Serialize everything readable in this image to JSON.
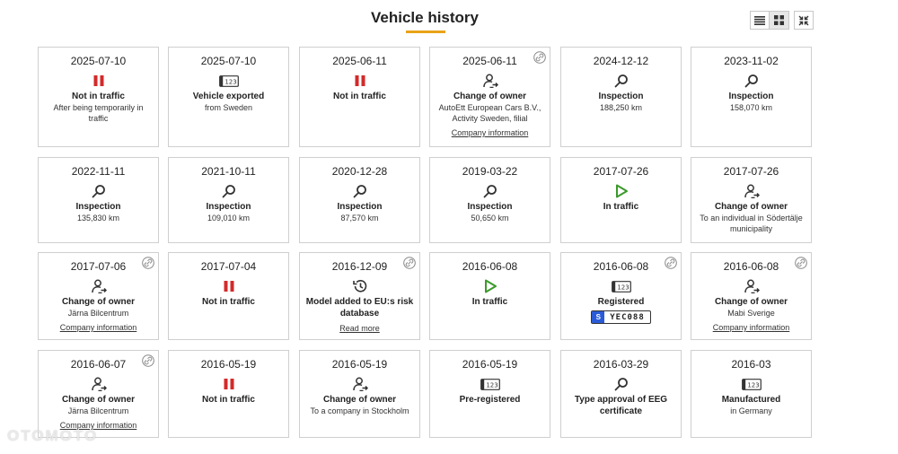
{
  "page": {
    "title": "Vehicle history",
    "watermark": "OTOMOTO"
  },
  "colors": {
    "accent": "#e8a317",
    "pause_red": "#d32a2a",
    "play_green": "#3a9a2a",
    "eu_blue": "#2a5bd7"
  },
  "toolbar": {
    "list_view_icon": "list-icon",
    "grid_view_icon": "grid-icon",
    "collapse_icon": "collapse-icon"
  },
  "events": [
    {
      "date": "2025-07-10",
      "icon": "pause",
      "title": "Not in traffic",
      "desc": "After being temporarily in traffic",
      "link": "",
      "linkicon": false
    },
    {
      "date": "2025-07-10",
      "icon": "plate",
      "title": "Vehicle exported",
      "desc": "from Sweden",
      "link": "",
      "linkicon": false
    },
    {
      "date": "2025-06-11",
      "icon": "pause",
      "title": "Not in traffic",
      "desc": "",
      "link": "",
      "linkicon": false
    },
    {
      "date": "2025-06-11",
      "icon": "owner",
      "title": "Change of owner",
      "desc": "AutoEtt European Cars B.V., Activity Sweden, filial",
      "link": "Company information",
      "linkicon": true
    },
    {
      "date": "2024-12-12",
      "icon": "search",
      "title": "Inspection",
      "desc": "188,250 km",
      "link": "",
      "linkicon": false
    },
    {
      "date": "2023-11-02",
      "icon": "search",
      "title": "Inspection",
      "desc": "158,070 km",
      "link": "",
      "linkicon": false
    },
    {
      "date": "2022-11-11",
      "icon": "search",
      "title": "Inspection",
      "desc": "135,830 km",
      "link": "",
      "linkicon": false
    },
    {
      "date": "2021-10-11",
      "icon": "search",
      "title": "Inspection",
      "desc": "109,010 km",
      "link": "",
      "linkicon": false
    },
    {
      "date": "2020-12-28",
      "icon": "search",
      "title": "Inspection",
      "desc": "87,570 km",
      "link": "",
      "linkicon": false
    },
    {
      "date": "2019-03-22",
      "icon": "search",
      "title": "Inspection",
      "desc": "50,650 km",
      "link": "",
      "linkicon": false
    },
    {
      "date": "2017-07-26",
      "icon": "play",
      "title": "In traffic",
      "desc": "",
      "link": "",
      "linkicon": false
    },
    {
      "date": "2017-07-26",
      "icon": "owner",
      "title": "Change of owner",
      "desc": "To an individual in Södertälje municipality",
      "link": "",
      "linkicon": false
    },
    {
      "date": "2017-07-06",
      "icon": "owner",
      "title": "Change of owner",
      "desc": "Järna Bilcentrum",
      "link": "Company information",
      "linkicon": true
    },
    {
      "date": "2017-07-04",
      "icon": "pause",
      "title": "Not in traffic",
      "desc": "",
      "link": "",
      "linkicon": false
    },
    {
      "date": "2016-12-09",
      "icon": "history",
      "title": "Model added to EU:s risk database",
      "desc": "",
      "link": "Read more",
      "linkicon": true
    },
    {
      "date": "2016-06-08",
      "icon": "play",
      "title": "In traffic",
      "desc": "",
      "link": "",
      "linkicon": false
    },
    {
      "date": "2016-06-08",
      "icon": "plate",
      "title": "Registered",
      "desc": "",
      "link": "",
      "linkicon": true,
      "plate_country": "S",
      "plate_number": "YEC088"
    },
    {
      "date": "2016-06-08",
      "icon": "owner",
      "title": "Change of owner",
      "desc": "Mabi Sverige",
      "link": "Company information",
      "linkicon": true
    },
    {
      "date": "2016-06-07",
      "icon": "owner",
      "title": "Change of owner",
      "desc": "Järna Bilcentrum",
      "link": "Company information",
      "linkicon": true
    },
    {
      "date": "2016-05-19",
      "icon": "pause",
      "title": "Not in traffic",
      "desc": "",
      "link": "",
      "linkicon": false
    },
    {
      "date": "2016-05-19",
      "icon": "owner",
      "title": "Change of owner",
      "desc": "To a company in Stockholm",
      "link": "",
      "linkicon": false
    },
    {
      "date": "2016-05-19",
      "icon": "plate",
      "title": "Pre-registered",
      "desc": "",
      "link": "",
      "linkicon": false
    },
    {
      "date": "2016-03-29",
      "icon": "search",
      "title": "Type approval of EEG certificate",
      "desc": "",
      "link": "",
      "linkicon": false
    },
    {
      "date": "2016-03",
      "icon": "plate",
      "title": "Manufactured",
      "desc": "in Germany",
      "link": "",
      "linkicon": false
    }
  ]
}
